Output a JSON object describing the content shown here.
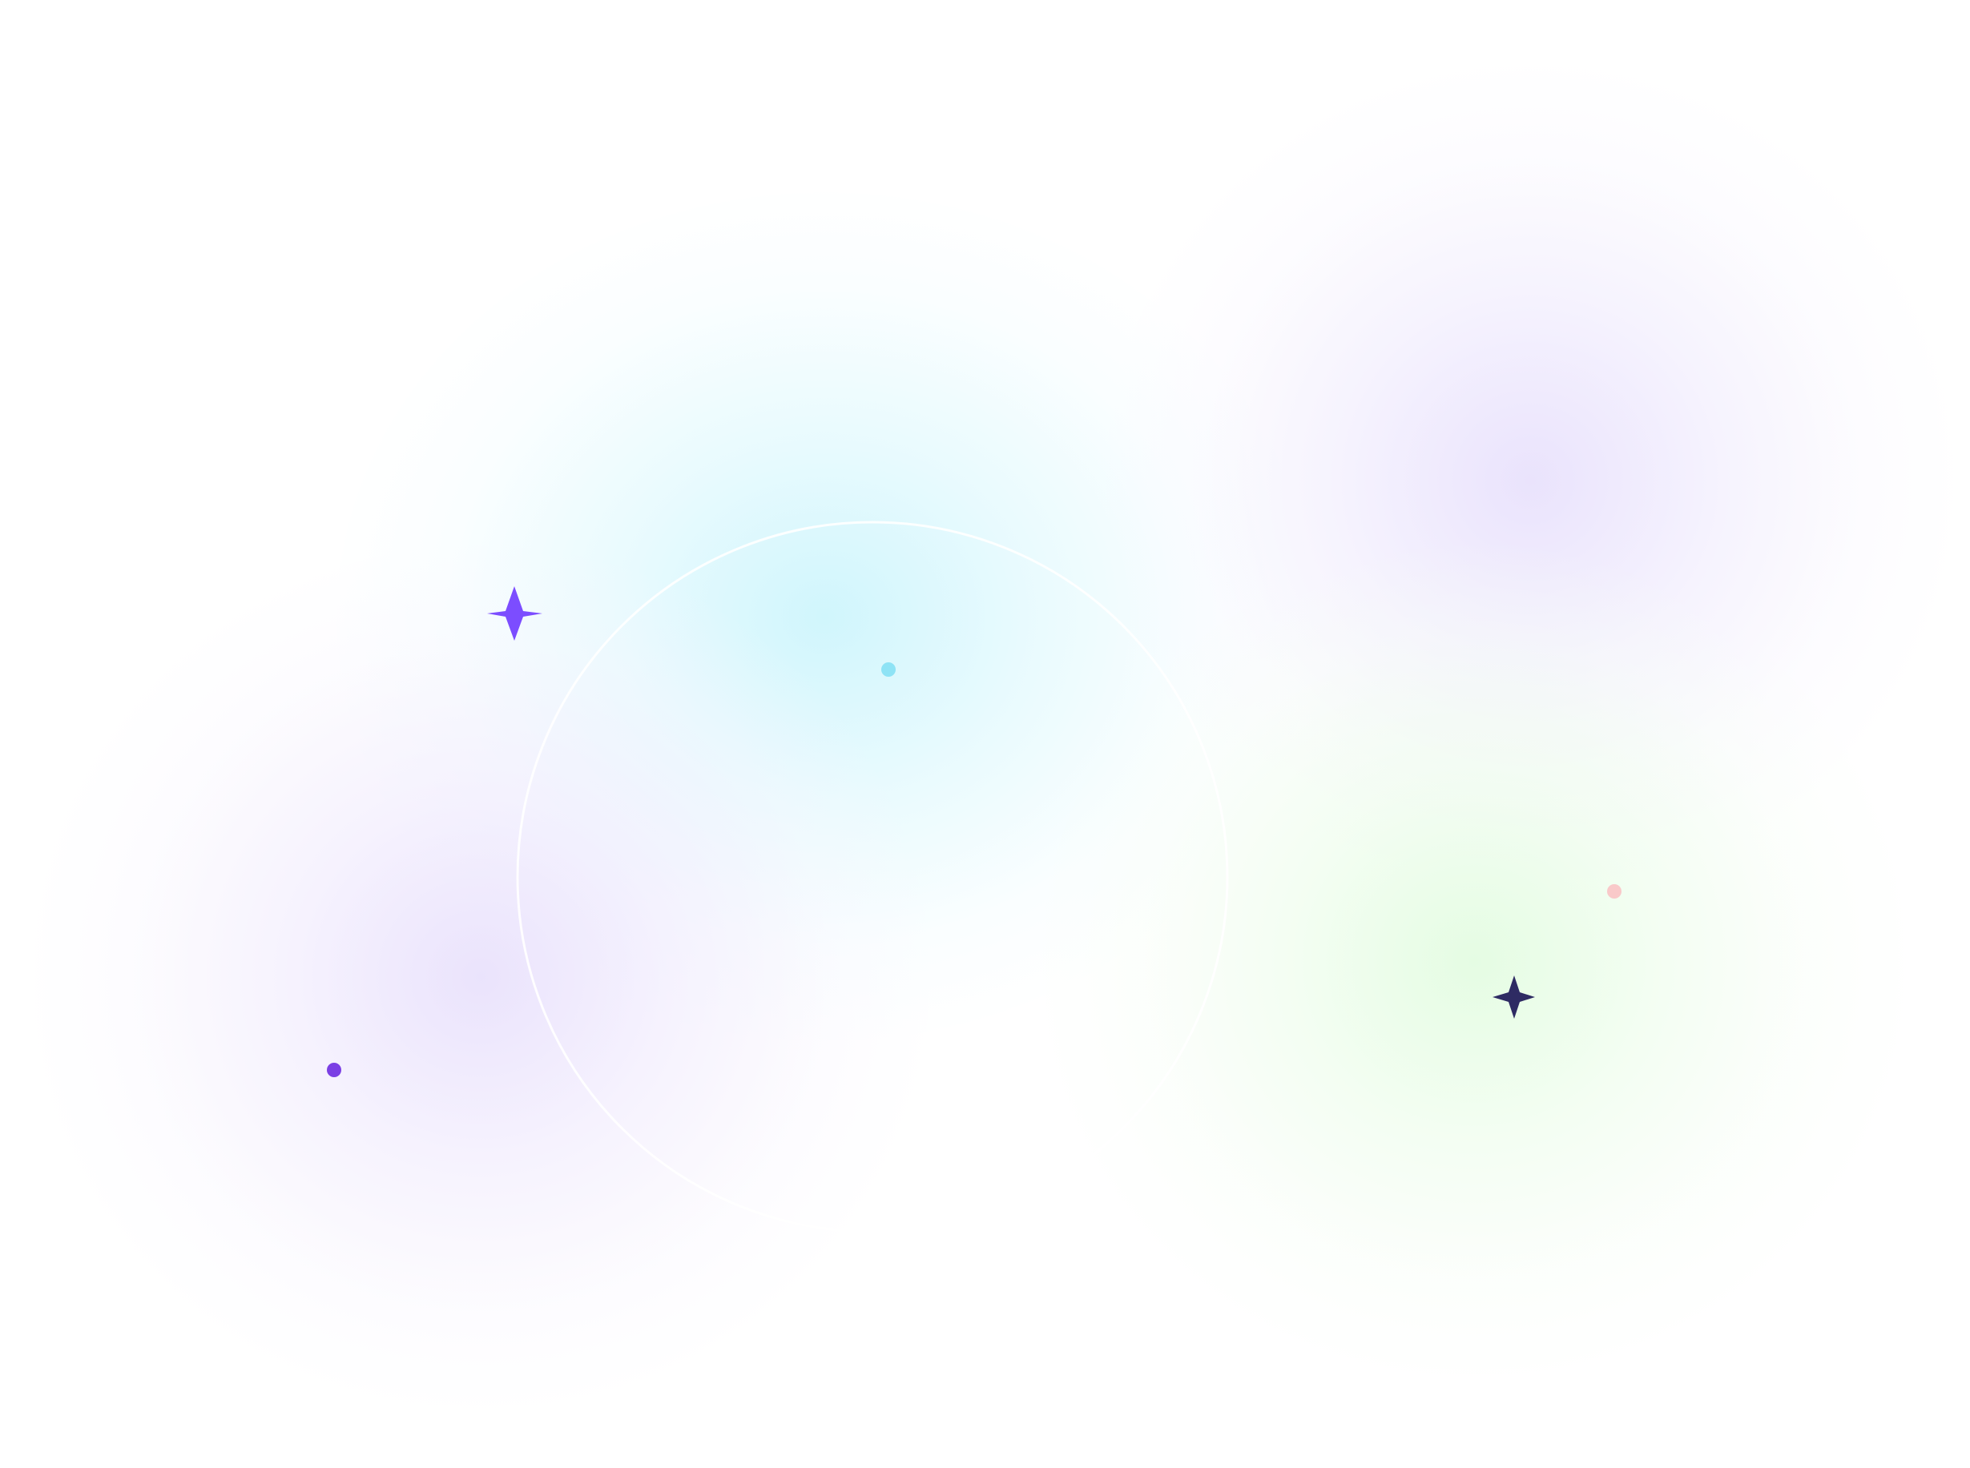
{
  "colors": {
    "background": "#ffffff",
    "glow_cyan": "#c8f4fc",
    "glow_violet": "#e6defc",
    "glow_green": "#e2fce0",
    "ring": "#ffffff",
    "sparkle_violet": "#7c4dff",
    "sparkle_navy": "#2e2b63",
    "dot_cyan": "#8ee3f5",
    "dot_violet": "#7b3fe4",
    "dot_pink": "#f9c9c9"
  },
  "decorations": {
    "sparkles": [
      {
        "icon": "four-point-star-icon",
        "color": "#7c4dff"
      },
      {
        "icon": "four-point-star-icon",
        "color": "#2e2b63"
      }
    ],
    "dots": [
      {
        "icon": "dot-icon",
        "color": "#8ee3f5"
      },
      {
        "icon": "dot-icon",
        "color": "#7b3fe4"
      },
      {
        "icon": "dot-icon",
        "color": "#f9c9c9"
      }
    ],
    "ring": {
      "icon": "thin-circle-outline",
      "color": "#ffffff"
    }
  }
}
